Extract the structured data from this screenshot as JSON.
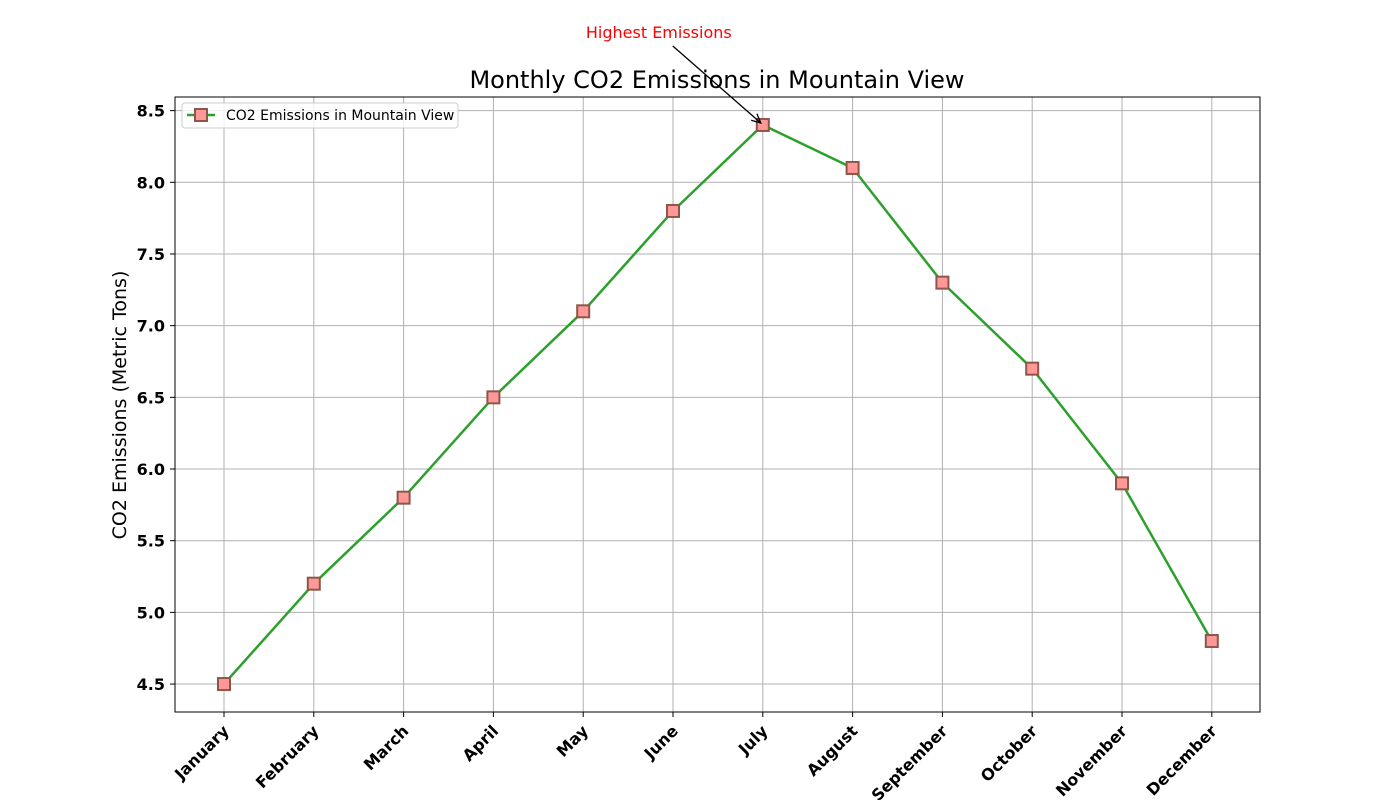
{
  "chart_data": {
    "type": "line",
    "title": "Monthly CO2 Emissions in Mountain View",
    "xlabel": "",
    "ylabel": "CO2 Emissions (Metric Tons)",
    "categories": [
      "January",
      "February",
      "March",
      "April",
      "May",
      "June",
      "July",
      "August",
      "September",
      "October",
      "November",
      "December"
    ],
    "series": [
      {
        "name": "CO2 Emissions in Mountain View",
        "values": [
          4.5,
          5.2,
          5.8,
          6.5,
          7.1,
          7.8,
          8.4,
          8.1,
          7.3,
          6.7,
          5.9,
          4.8
        ],
        "line_color": "#2ca02c",
        "marker": "square",
        "marker_fill": "#ff9896",
        "marker_edge": "#8c564b"
      }
    ],
    "ylim": [
      4.305,
      8.595
    ],
    "yticks": [
      "4.5",
      "5.0",
      "5.5",
      "6.0",
      "6.5",
      "7.0",
      "7.5",
      "8.0",
      "8.5"
    ],
    "grid": true,
    "legend_position": "top-left",
    "annotation": {
      "text": "Highest Emissions",
      "category": "July",
      "value": 8.4,
      "color": "#ff0000"
    }
  }
}
